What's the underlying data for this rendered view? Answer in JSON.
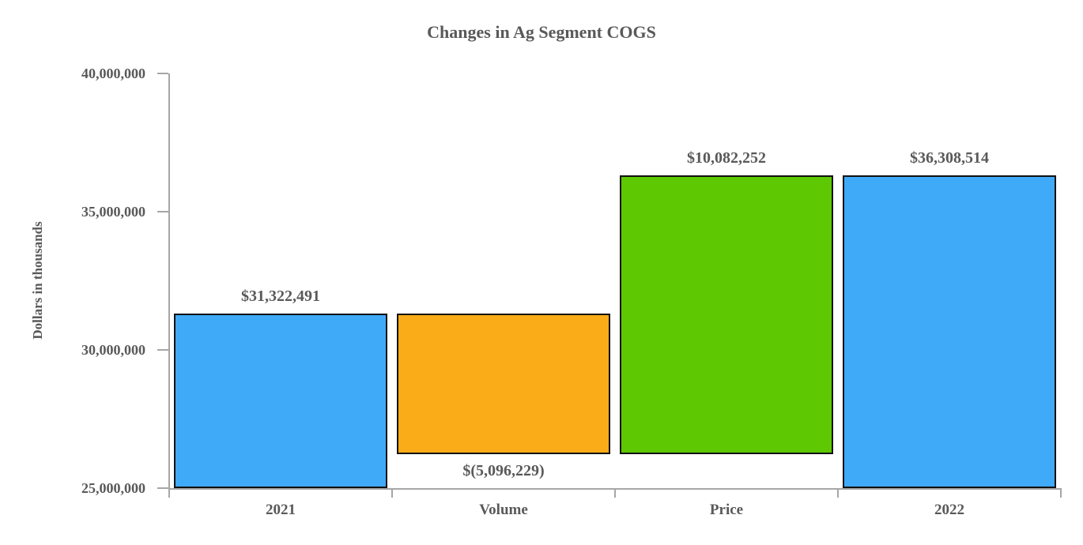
{
  "chart_data": {
    "type": "bar",
    "subtype": "waterfall",
    "title": "Changes in Ag Segment COGS",
    "ylabel": "Dollars in thousands",
    "xlabel": "",
    "ylim": [
      25000000,
      40000000
    ],
    "ytick_step": 5000000,
    "ytick_labels": [
      "40,000,000",
      "35,000,000",
      "30,000,000",
      "25,000,000"
    ],
    "categories": [
      "2021",
      "Volume",
      "Price",
      "2022"
    ],
    "grid": "off",
    "legend": "none",
    "bars": [
      {
        "category": "2021",
        "value": 31322491,
        "label": "$31,322,491",
        "span": [
          25000000,
          31322491
        ],
        "color_key": "blue",
        "label_position": "above"
      },
      {
        "category": "Volume",
        "value": -5096229,
        "label": "$(5,096,229)",
        "span": [
          26226262,
          31322491
        ],
        "color_key": "orange",
        "label_position": "below"
      },
      {
        "category": "Price",
        "value": 10082252,
        "label": "$10,082,252",
        "span": [
          26226262,
          36308514
        ],
        "color_key": "green",
        "label_position": "above"
      },
      {
        "category": "2022",
        "value": 36308514,
        "label": "$36,308,514",
        "span": [
          25000000,
          36308514
        ],
        "color_key": "blue",
        "label_position": "above"
      }
    ],
    "colors": {
      "blue": "#3FAAF8",
      "orange": "#F9AC18",
      "green": "#5EC802",
      "bar_border": "#111111",
      "axis": "#A6A6A6",
      "text": "#595959"
    }
  }
}
